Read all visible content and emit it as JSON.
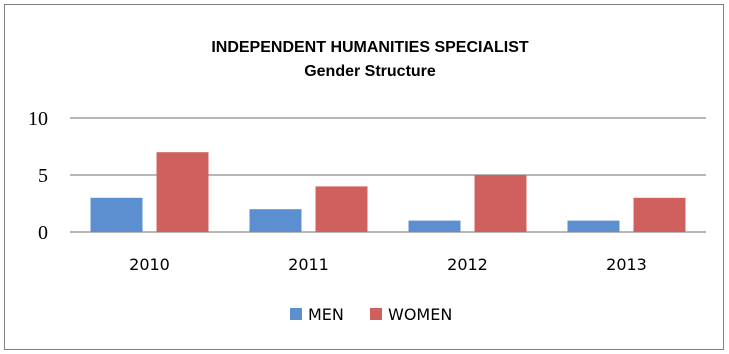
{
  "chart_data": {
    "type": "bar",
    "title": "INDEPENDENT HUMANITIES SPECIALIST",
    "subtitle": "Gender Structure",
    "categories": [
      "2010",
      "2011",
      "2012",
      "2013"
    ],
    "series": [
      {
        "name": "MEN",
        "values": [
          3,
          2,
          1,
          1
        ],
        "color": "#5b8fd0"
      },
      {
        "name": "WOMEN",
        "values": [
          7,
          4,
          5,
          3
        ],
        "color": "#d0605e"
      }
    ],
    "ylim": [
      0,
      10
    ],
    "yticks": [
      "0",
      "5",
      "10"
    ],
    "grid": true,
    "legend": "bottom"
  }
}
